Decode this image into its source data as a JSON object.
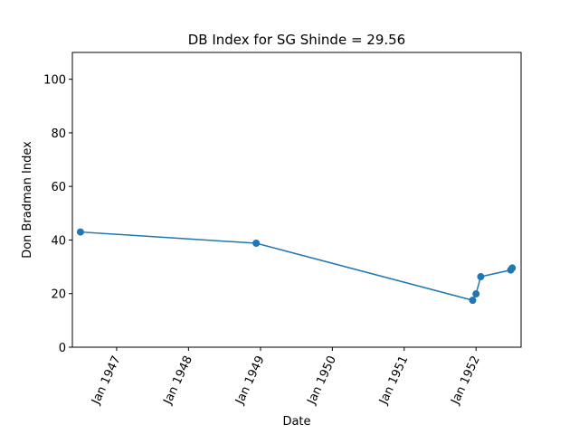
{
  "chart_data": {
    "type": "line",
    "title": "DB Index for SG Shinde = 29.56",
    "xlabel": "Date",
    "ylabel": "Don Bradman Index",
    "ylim": [
      0,
      110
    ],
    "xlim": [
      "1946-05-21",
      "1952-08-17"
    ],
    "grid": false,
    "y_ticks": [
      0,
      20,
      40,
      60,
      80,
      100
    ],
    "x_ticks": [
      {
        "date": "1947-01-01",
        "label": "Jan 1947"
      },
      {
        "date": "1948-01-01",
        "label": "Jan 1948"
      },
      {
        "date": "1949-01-01",
        "label": "Jan 1949"
      },
      {
        "date": "1950-01-01",
        "label": "Jan 1950"
      },
      {
        "date": "1951-01-01",
        "label": "Jan 1951"
      },
      {
        "date": "1952-01-01",
        "label": "Jan 1952"
      }
    ],
    "series": [
      {
        "color": "#1f77b4",
        "x": [
          "1946-07-01",
          "1948-12-10",
          "1951-12-15",
          "1952-01-01",
          "1952-01-25",
          "1952-06-25",
          "1952-07-03"
        ],
        "y": [
          43.0,
          38.8,
          17.5,
          19.9,
          26.3,
          28.8,
          29.56
        ]
      }
    ]
  }
}
